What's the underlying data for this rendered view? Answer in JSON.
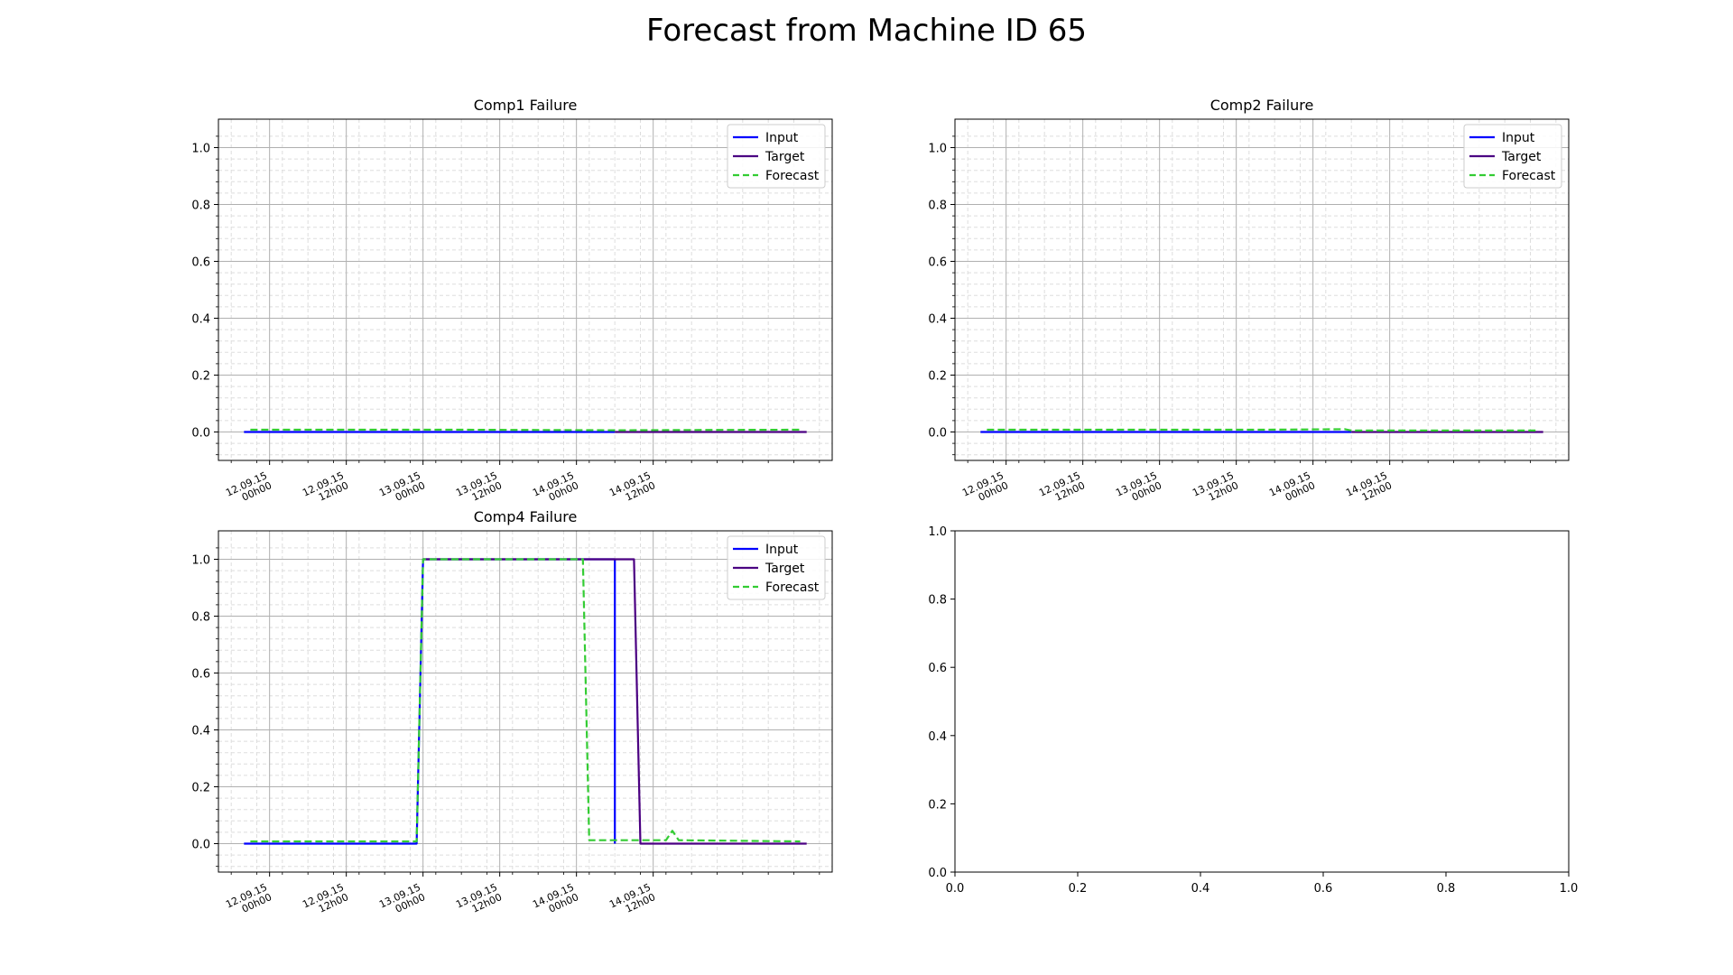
{
  "title": "Forecast from Machine ID 65",
  "chart_data": [
    {
      "type": "line",
      "title": "Comp1 Failure",
      "x_tick_labels": [
        [
          "12.09.15",
          "00h00"
        ],
        [
          "12.09.15",
          "12h00"
        ],
        [
          "13.09.15",
          "00h00"
        ],
        [
          "13.09.15",
          "12h00"
        ],
        [
          "14.09.15",
          "00h00"
        ],
        [
          "14.09.15",
          "12h00"
        ]
      ],
      "y_ticks": [
        "0.0",
        "0.2",
        "0.4",
        "0.6",
        "0.8",
        "1.0"
      ],
      "ylim": [
        -0.1,
        1.1
      ],
      "x_unit": "hours from 12.09.15 00h00",
      "xlim": [
        -8,
        88
      ],
      "grid": true,
      "legend": "top-right",
      "series": [
        {
          "name": "Input",
          "color": "#0000ff",
          "dash": false,
          "points": [
            [
              -4,
              0
            ],
            [
              54,
              0
            ]
          ]
        },
        {
          "name": "Target",
          "color": "#4b0082",
          "dash": false,
          "points": [
            [
              54,
              0
            ],
            [
              84,
              0
            ]
          ]
        },
        {
          "name": "Forecast",
          "color": "#33cc33",
          "dash": true,
          "points": [
            [
              -3,
              0.008
            ],
            [
              10,
              0.008
            ],
            [
              30,
              0.008
            ],
            [
              54,
              0.006
            ],
            [
              66,
              0.007
            ],
            [
              83,
              0.008
            ]
          ]
        }
      ]
    },
    {
      "type": "line",
      "title": "Comp2 Failure",
      "x_tick_labels": [
        [
          "12.09.15",
          "00h00"
        ],
        [
          "12.09.15",
          "12h00"
        ],
        [
          "13.09.15",
          "00h00"
        ],
        [
          "13.09.15",
          "12h00"
        ],
        [
          "14.09.15",
          "00h00"
        ],
        [
          "14.09.15",
          "12h00"
        ]
      ],
      "y_ticks": [
        "0.0",
        "0.2",
        "0.4",
        "0.6",
        "0.8",
        "1.0"
      ],
      "ylim": [
        -0.1,
        1.1
      ],
      "x_unit": "hours from 12.09.15 00h00",
      "xlim": [
        -8,
        88
      ],
      "grid": true,
      "legend": "top-right",
      "series": [
        {
          "name": "Input",
          "color": "#0000ff",
          "dash": false,
          "points": [
            [
              -4,
              0
            ],
            [
              54,
              0
            ]
          ]
        },
        {
          "name": "Target",
          "color": "#4b0082",
          "dash": false,
          "points": [
            [
              54,
              0
            ],
            [
              84,
              0
            ]
          ]
        },
        {
          "name": "Forecast",
          "color": "#33cc33",
          "dash": true,
          "points": [
            [
              -3,
              0.008
            ],
            [
              20,
              0.008
            ],
            [
              40,
              0.008
            ],
            [
              53,
              0.01
            ],
            [
              54,
              0.005
            ],
            [
              70,
              0.005
            ],
            [
              83,
              0.005
            ]
          ]
        }
      ]
    },
    {
      "type": "line",
      "title": "Comp4 Failure",
      "x_tick_labels": [
        [
          "12.09.15",
          "00h00"
        ],
        [
          "12.09.15",
          "12h00"
        ],
        [
          "13.09.15",
          "00h00"
        ],
        [
          "13.09.15",
          "12h00"
        ],
        [
          "14.09.15",
          "00h00"
        ],
        [
          "14.09.15",
          "12h00"
        ]
      ],
      "y_ticks": [
        "0.0",
        "0.2",
        "0.4",
        "0.6",
        "0.8",
        "1.0"
      ],
      "ylim": [
        -0.1,
        1.1
      ],
      "x_unit": "hours from 12.09.15 00h00",
      "xlim": [
        -8,
        88
      ],
      "grid": true,
      "legend": "top-right",
      "series": [
        {
          "name": "Input",
          "color": "#0000ff",
          "dash": false,
          "points": [
            [
              -4,
              0
            ],
            [
              23,
              0
            ],
            [
              24,
              1
            ],
            [
              54,
              1
            ],
            [
              54,
              0
            ]
          ]
        },
        {
          "name": "Target",
          "color": "#4b0082",
          "dash": false,
          "points": [
            [
              24,
              1
            ],
            [
              54,
              1
            ],
            [
              57,
              1
            ],
            [
              58,
              0
            ],
            [
              84,
              0
            ]
          ]
        },
        {
          "name": "Forecast",
          "color": "#33cc33",
          "dash": true,
          "points": [
            [
              -3,
              0.008
            ],
            [
              23,
              0.008
            ],
            [
              24,
              1
            ],
            [
              49,
              1
            ],
            [
              50,
              0.012
            ],
            [
              58,
              0.012
            ],
            [
              62,
              0.012
            ],
            [
              63,
              0.045
            ],
            [
              64,
              0.012
            ],
            [
              83,
              0.008
            ]
          ]
        }
      ]
    },
    {
      "type": "line",
      "title": "",
      "x_tick_labels": [
        "0.0",
        "0.2",
        "0.4",
        "0.6",
        "0.8",
        "1.0"
      ],
      "y_ticks": [
        "0.0",
        "0.2",
        "0.4",
        "0.6",
        "0.8",
        "1.0"
      ],
      "xlim": [
        0,
        1
      ],
      "ylim": [
        0,
        1
      ],
      "grid": false,
      "series": []
    }
  ]
}
